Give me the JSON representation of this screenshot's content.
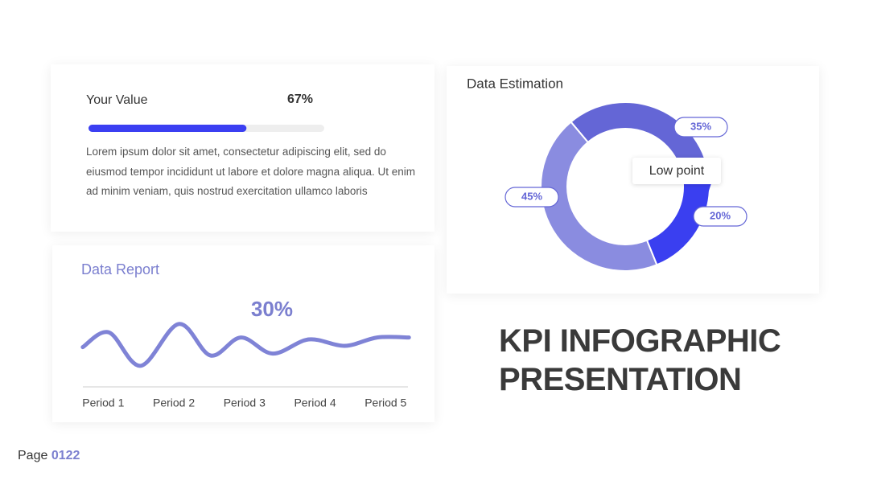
{
  "value_card": {
    "text": "Lorem ipsum dolor sit amet, consectetur adipiscing elit, sed do eiusmod tempor incididunt ut labore et dolore magna aliqua. Ut enim ad minim veniam, quis nostrud exercitation ullamco laboris"
  },
  "headline": [
    "KPI INFOGRAPHIC",
    "PRESENTATION"
  ],
  "page": {
    "label": "Page",
    "number": "0122"
  },
  "chart_data": [
    {
      "type": "progress",
      "title": "Your Value",
      "values": [
        67
      ],
      "value_labels": [
        "67%"
      ],
      "xlim": [
        0,
        100
      ],
      "color": "#3b3ff2",
      "track_color": "#eeeeee"
    },
    {
      "type": "pie",
      "title": "Data Estimation",
      "values": [
        35,
        20,
        45
      ],
      "value_labels": [
        "35%",
        "20%",
        "45%"
      ],
      "colors": [
        "#6466d6",
        "#3a3ff0",
        "#8a8ce0"
      ],
      "annotation": "Low point"
    },
    {
      "type": "line",
      "title": "Data Report",
      "annotation": "30%",
      "color": "#7f83d6",
      "x": [
        0.71,
        1.08,
        1.53,
        2.07,
        2.52,
        2.95,
        3.4,
        3.91,
        4.42,
        4.88,
        5.33
      ],
      "values": [
        48,
        71,
        19,
        84,
        35,
        63,
        38,
        60,
        50,
        63,
        63
      ],
      "xlim": [
        0.7,
        5.35
      ],
      "ylim": [
        0,
        100
      ],
      "xticks": [
        {
          "value": 1,
          "label": "Period 1"
        },
        {
          "value": 2,
          "label": "Period 2"
        },
        {
          "value": 3,
          "label": "Period 3"
        },
        {
          "value": 4,
          "label": "Period 4"
        },
        {
          "value": 5,
          "label": "Period 5"
        }
      ]
    }
  ]
}
